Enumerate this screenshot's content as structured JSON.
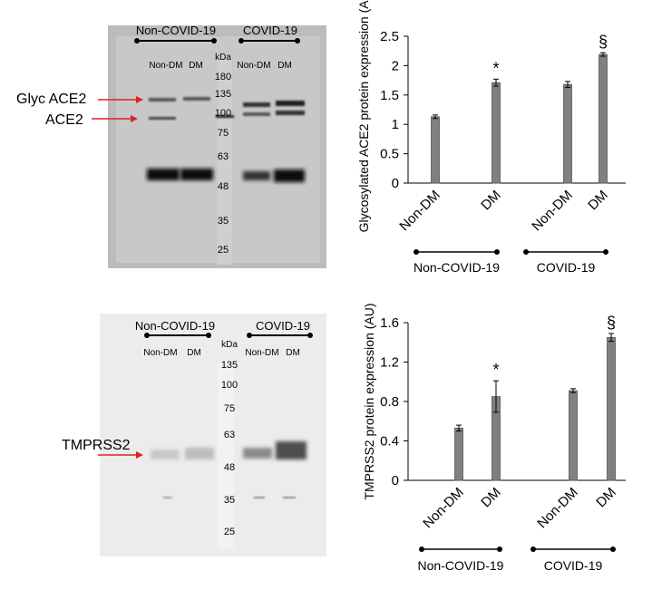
{
  "blots": [
    {
      "groups": [
        {
          "label": "Non-COVID-19",
          "lanes": [
            "Non-DM",
            "DM"
          ]
        },
        {
          "label": "COVID-19",
          "lanes": [
            "Non-DM",
            "DM"
          ]
        }
      ],
      "marker_unit": "kDa",
      "markers": [
        "180",
        "135",
        "100",
        "75",
        "63",
        "48",
        "35",
        "25"
      ],
      "band_labels": [
        "Glyc ACE2",
        "ACE2"
      ]
    },
    {
      "groups": [
        {
          "label": "Non-COVID-19",
          "lanes": [
            "Non-DM",
            "DM"
          ]
        },
        {
          "label": "COVID-19",
          "lanes": [
            "Non-DM",
            "DM"
          ]
        }
      ],
      "marker_unit": "kDa",
      "markers": [
        "135",
        "100",
        "75",
        "63",
        "48",
        "35",
        "25"
      ],
      "band_labels": [
        "TMPRSS2"
      ]
    }
  ],
  "chart_data": [
    {
      "type": "bar",
      "ylabel": "Glycosylated ACE2 protein expression (AU)",
      "categories": [
        "Non-DM",
        "DM",
        "Non-DM",
        "DM"
      ],
      "groups": [
        "Non-COVID-19",
        "COVID-19"
      ],
      "values": [
        1.13,
        1.71,
        1.68,
        2.19
      ],
      "errors": [
        0.03,
        0.06,
        0.05,
        0.03
      ],
      "annotations": [
        "",
        "*",
        "",
        "§"
      ],
      "ylim": [
        0,
        2.5
      ],
      "yticks": [
        "0",
        "0.5",
        "1",
        "1.5",
        "2",
        "2.5"
      ],
      "bar_color": "#808080"
    },
    {
      "type": "bar",
      "ylabel": "TMPRSS2 protein expression (AU)",
      "categories": [
        "Non-DM",
        "DM",
        "Non-DM",
        "DM"
      ],
      "groups": [
        "Non-COVID-19",
        "COVID-19"
      ],
      "values": [
        0.53,
        0.85,
        0.91,
        1.45
      ],
      "errors": [
        0.03,
        0.16,
        0.02,
        0.04
      ],
      "annotations": [
        "",
        "*",
        "",
        "§"
      ],
      "ylim": [
        0,
        1.6
      ],
      "yticks": [
        "0",
        "0.4",
        "0.8",
        "1.2",
        "1.6"
      ],
      "bar_color": "#808080"
    }
  ]
}
